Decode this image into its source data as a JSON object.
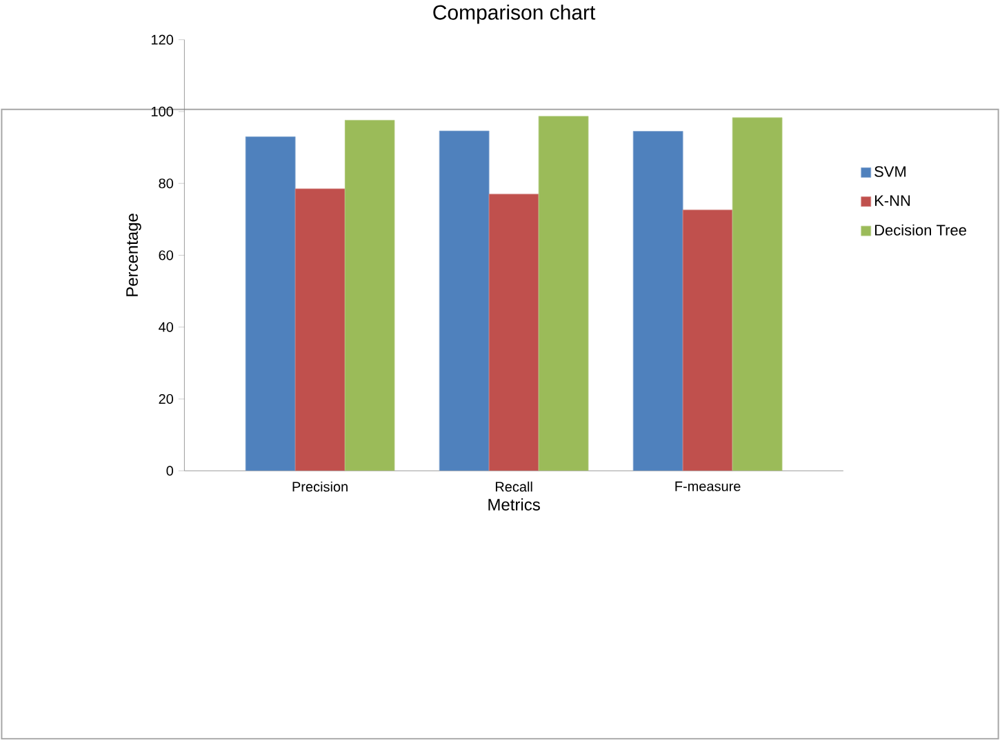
{
  "chart_data": {
    "type": "bar",
    "title": "Comparison chart",
    "xlabel": "Metrics",
    "ylabel": "Percentage",
    "categories": [
      "Precision",
      "Recall",
      "F-measure"
    ],
    "series": [
      {
        "name": "SVM",
        "color": "#4f81bd",
        "values": [
          93.0,
          94.6,
          94.5
        ]
      },
      {
        "name": "K-NN",
        "color": "#c0504d",
        "values": [
          78.5,
          77.0,
          72.6
        ]
      },
      {
        "name": "Decision Tree",
        "color": "#9bbb59",
        "values": [
          97.6,
          98.7,
          98.3
        ]
      }
    ],
    "ylim": [
      0,
      120
    ],
    "yticks": [
      0,
      20,
      40,
      60,
      80,
      100,
      120
    ],
    "legend": "right"
  }
}
